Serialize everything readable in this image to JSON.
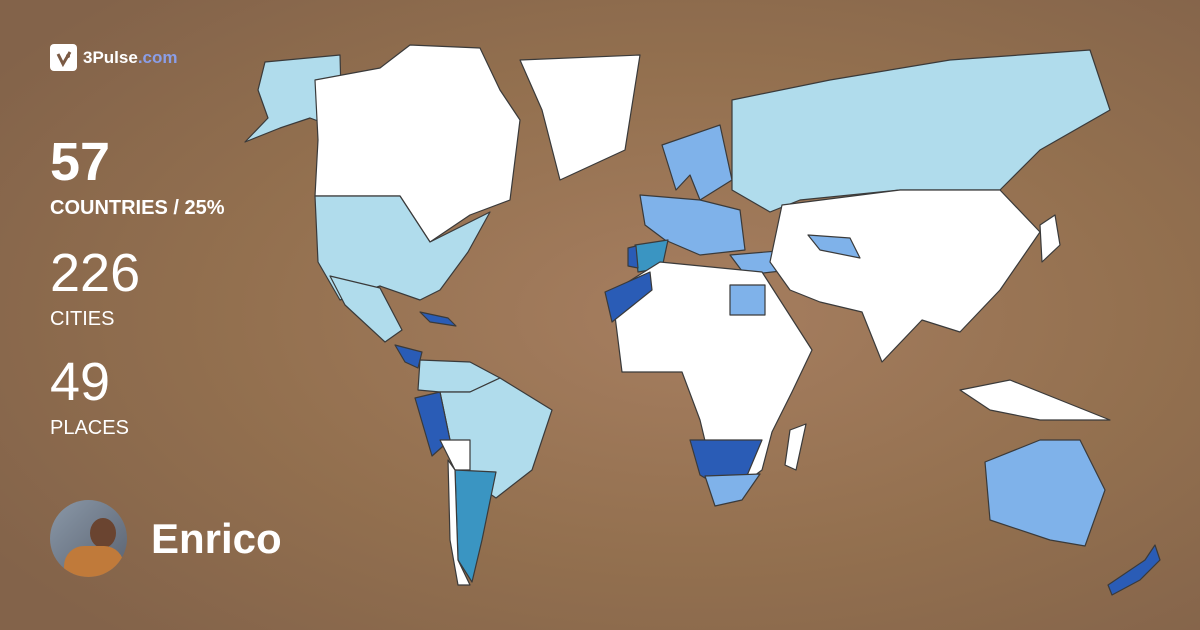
{
  "brand": {
    "name": "3Pulse",
    "tld": ".com",
    "tld_color": "#8a9ee8"
  },
  "stats": {
    "countries": {
      "value": "57",
      "label": "COUNTRIES / 25%"
    },
    "cities": {
      "value": "226",
      "label": "CITIES"
    },
    "places": {
      "value": "49",
      "label": "PLACES"
    }
  },
  "user": {
    "name": "Enrico"
  },
  "map": {
    "colors": {
      "not_visited": "#ffffff",
      "level_1": "#b0dcec",
      "level_2": "#7fb2ea",
      "level_3": "#3a95c2",
      "level_4": "#2a5cb6"
    }
  }
}
